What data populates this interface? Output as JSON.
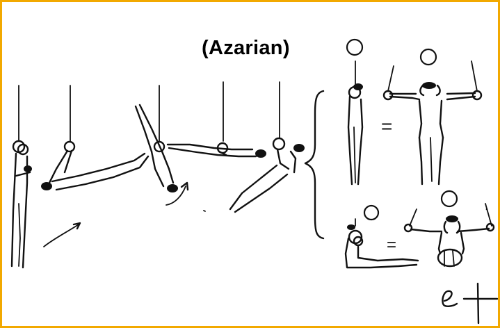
{
  "title": "(Azarian)",
  "colors": {
    "frame_border": "#f2a900",
    "ink": "#111111",
    "background": "#ffffff"
  },
  "symbols": {
    "equals": "=",
    "skill_code": "e-value-symbol"
  }
}
